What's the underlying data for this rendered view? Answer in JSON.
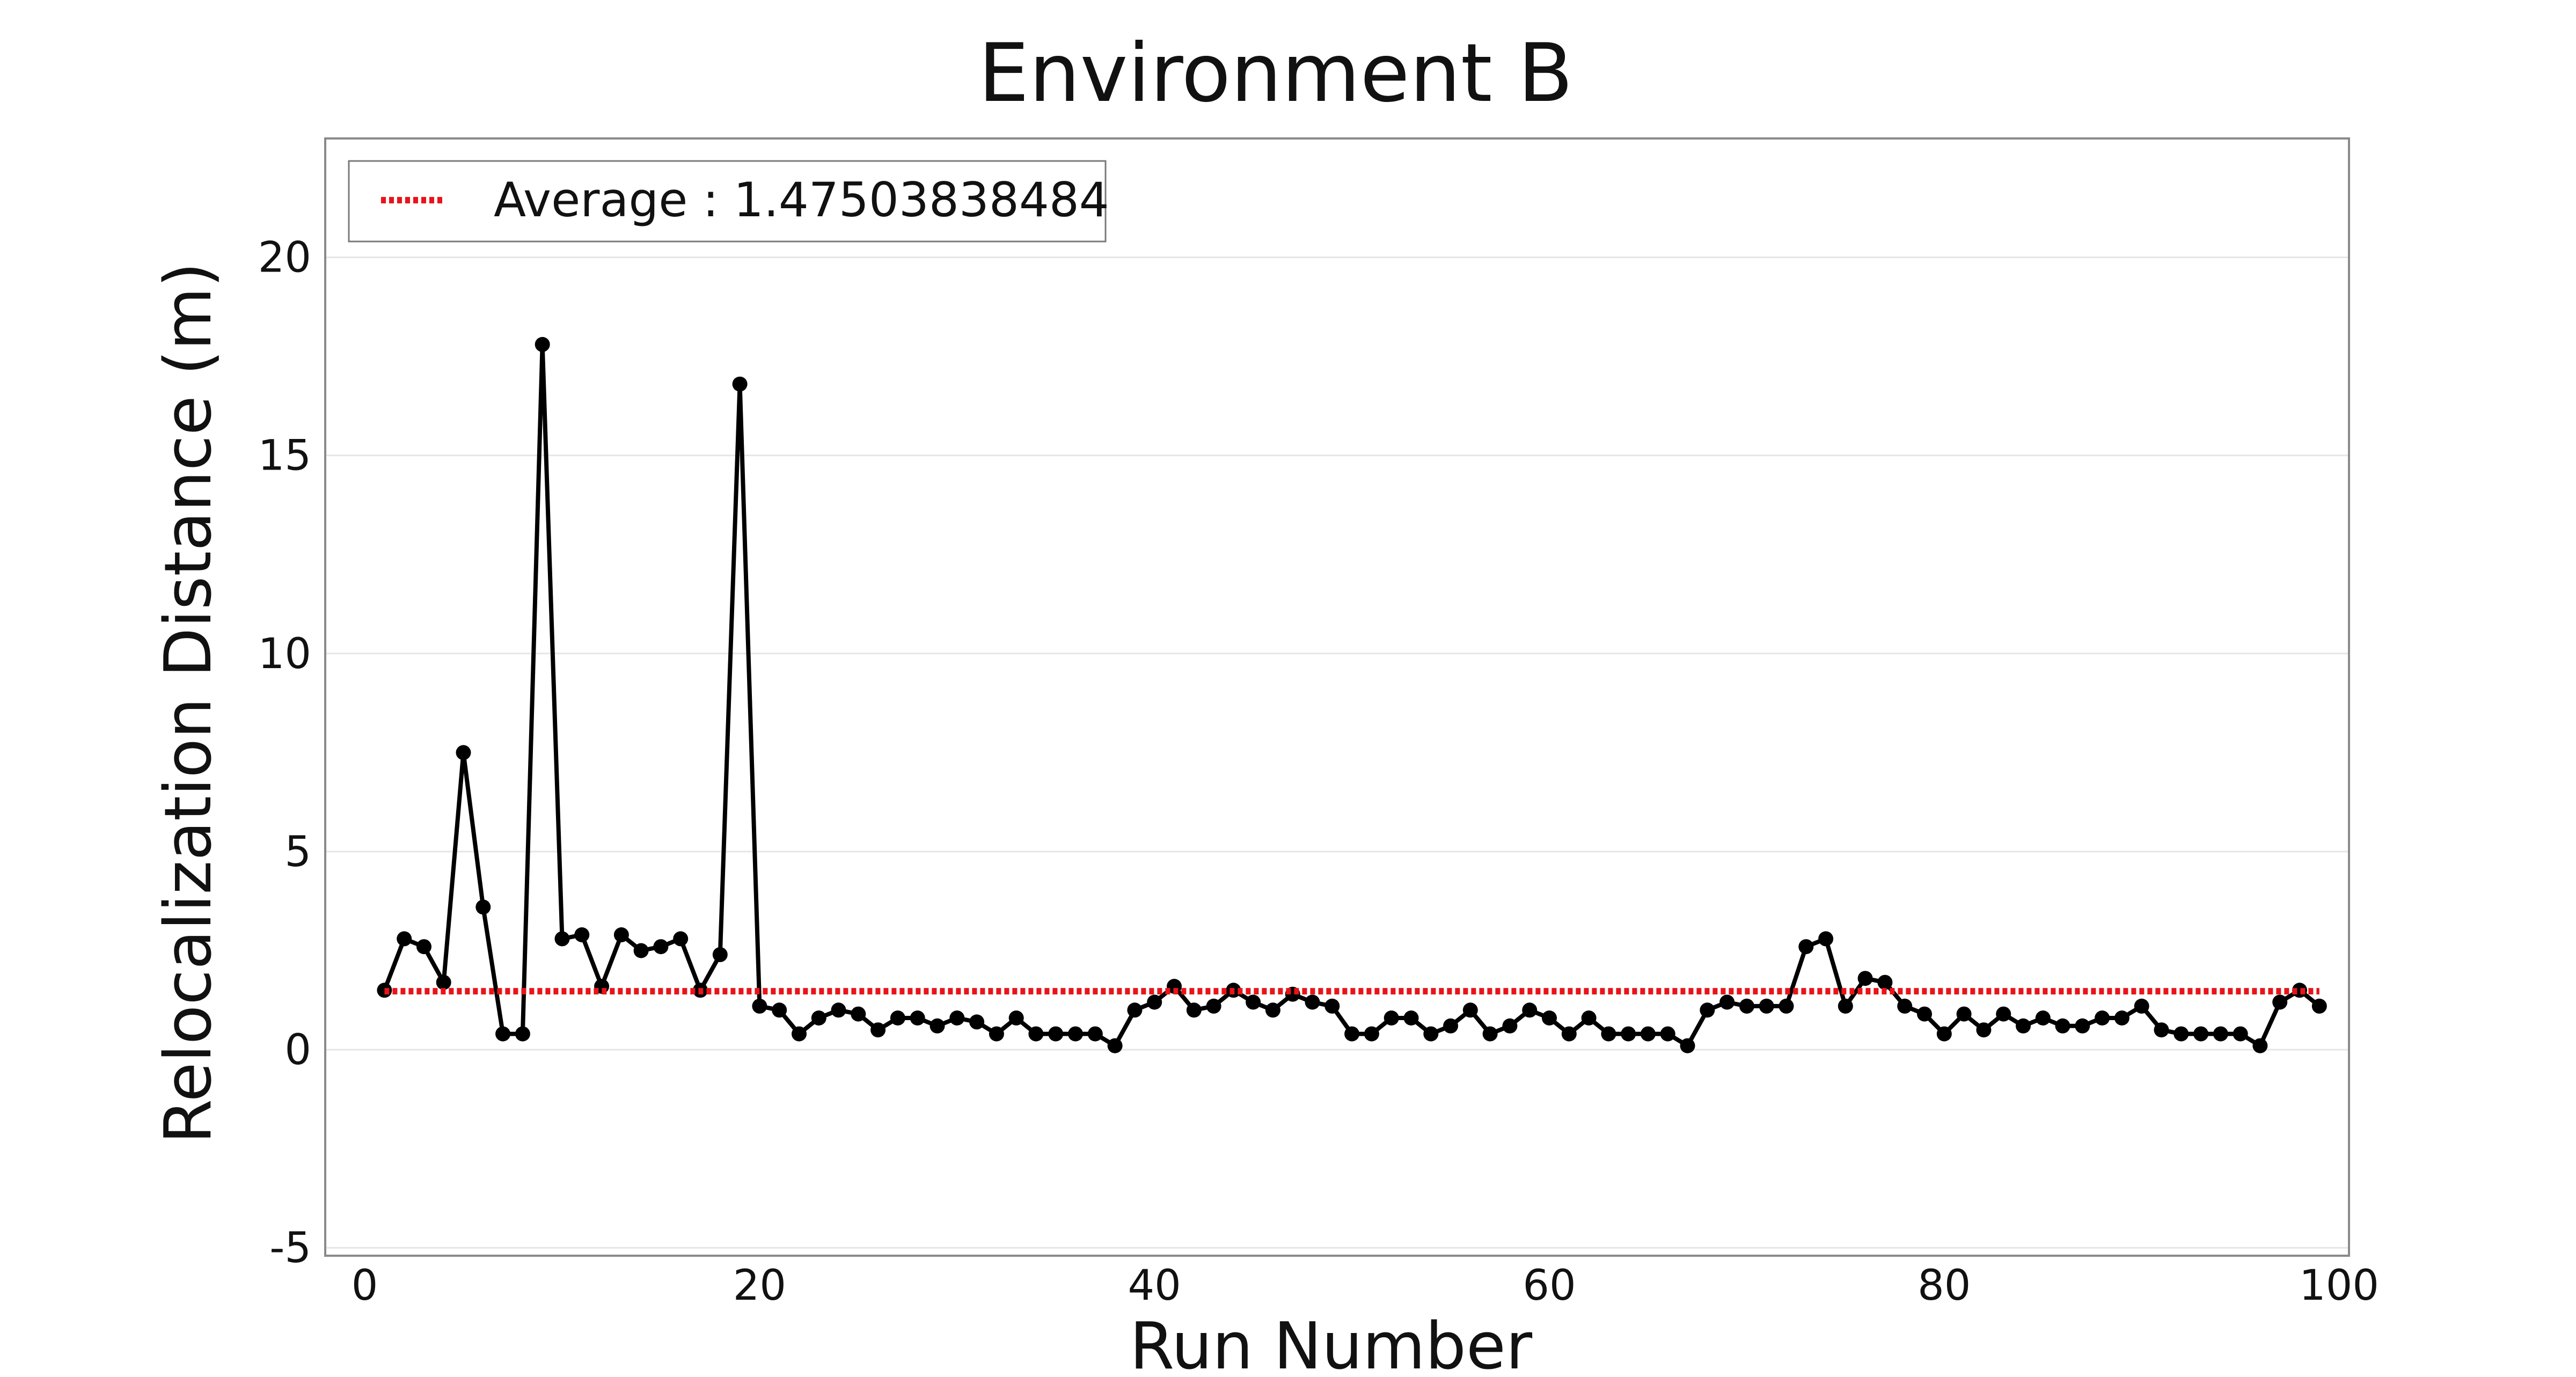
{
  "chart_data": {
    "type": "line",
    "title": "Environment B",
    "xlabel": "Run Number",
    "ylabel": "Relocalization Distance (m)",
    "xlim": [
      -2,
      100.5
    ],
    "ylim": [
      -5.2,
      23
    ],
    "x_ticks": [
      0,
      20,
      40,
      60,
      80,
      100
    ],
    "y_ticks": [
      -5,
      0,
      5,
      10,
      15,
      20
    ],
    "grid": "horizontal",
    "legend_position": "top-left",
    "colors": {
      "series": "#000000",
      "average": "#e8141a",
      "grid": "#e6e6e6",
      "frame": "#8a8a8a"
    },
    "series": [
      {
        "values": [
          {
            "x": 1,
            "y": 1.5
          },
          {
            "x": 2,
            "y": 2.8
          },
          {
            "x": 3,
            "y": 2.6
          },
          {
            "x": 4,
            "y": 1.7
          },
          {
            "x": 5,
            "y": 7.5
          },
          {
            "x": 6,
            "y": 3.6
          },
          {
            "x": 7,
            "y": 0.4
          },
          {
            "x": 8,
            "y": 0.4
          },
          {
            "x": 9,
            "y": 17.8
          },
          {
            "x": 10,
            "y": 2.8
          },
          {
            "x": 11,
            "y": 2.9
          },
          {
            "x": 12,
            "y": 1.6
          },
          {
            "x": 13,
            "y": 2.9
          },
          {
            "x": 14,
            "y": 2.5
          },
          {
            "x": 15,
            "y": 2.6
          },
          {
            "x": 16,
            "y": 2.8
          },
          {
            "x": 17,
            "y": 1.5
          },
          {
            "x": 18,
            "y": 2.4
          },
          {
            "x": 19,
            "y": 16.8
          },
          {
            "x": 20,
            "y": 1.1
          },
          {
            "x": 21,
            "y": 1.0
          },
          {
            "x": 22,
            "y": 0.4
          },
          {
            "x": 23,
            "y": 0.8
          },
          {
            "x": 24,
            "y": 1.0
          },
          {
            "x": 25,
            "y": 0.9
          },
          {
            "x": 26,
            "y": 0.5
          },
          {
            "x": 27,
            "y": 0.8
          },
          {
            "x": 28,
            "y": 0.8
          },
          {
            "x": 29,
            "y": 0.6
          },
          {
            "x": 30,
            "y": 0.8
          },
          {
            "x": 31,
            "y": 0.7
          },
          {
            "x": 32,
            "y": 0.4
          },
          {
            "x": 33,
            "y": 0.8
          },
          {
            "x": 34,
            "y": 0.4
          },
          {
            "x": 35,
            "y": 0.4
          },
          {
            "x": 36,
            "y": 0.4
          },
          {
            "x": 37,
            "y": 0.4
          },
          {
            "x": 38,
            "y": 0.1
          },
          {
            "x": 39,
            "y": 1.0
          },
          {
            "x": 40,
            "y": 1.2
          },
          {
            "x": 41,
            "y": 1.6
          },
          {
            "x": 42,
            "y": 1.0
          },
          {
            "x": 43,
            "y": 1.1
          },
          {
            "x": 44,
            "y": 1.5
          },
          {
            "x": 45,
            "y": 1.2
          },
          {
            "x": 46,
            "y": 1.0
          },
          {
            "x": 47,
            "y": 1.4
          },
          {
            "x": 48,
            "y": 1.2
          },
          {
            "x": 49,
            "y": 1.1
          },
          {
            "x": 50,
            "y": 0.4
          },
          {
            "x": 51,
            "y": 0.4
          },
          {
            "x": 52,
            "y": 0.8
          },
          {
            "x": 53,
            "y": 0.8
          },
          {
            "x": 54,
            "y": 0.4
          },
          {
            "x": 55,
            "y": 0.6
          },
          {
            "x": 56,
            "y": 1.0
          },
          {
            "x": 57,
            "y": 0.4
          },
          {
            "x": 58,
            "y": 0.6
          },
          {
            "x": 59,
            "y": 1.0
          },
          {
            "x": 60,
            "y": 0.8
          },
          {
            "x": 61,
            "y": 0.4
          },
          {
            "x": 62,
            "y": 0.8
          },
          {
            "x": 63,
            "y": 0.4
          },
          {
            "x": 64,
            "y": 0.4
          },
          {
            "x": 65,
            "y": 0.4
          },
          {
            "x": 66,
            "y": 0.4
          },
          {
            "x": 67,
            "y": 0.1
          },
          {
            "x": 68,
            "y": 1.0
          },
          {
            "x": 69,
            "y": 1.2
          },
          {
            "x": 70,
            "y": 1.1
          },
          {
            "x": 71,
            "y": 1.1
          },
          {
            "x": 72,
            "y": 1.1
          },
          {
            "x": 73,
            "y": 2.6
          },
          {
            "x": 74,
            "y": 2.8
          },
          {
            "x": 75,
            "y": 1.1
          },
          {
            "x": 76,
            "y": 1.8
          },
          {
            "x": 77,
            "y": 1.7
          },
          {
            "x": 78,
            "y": 1.1
          },
          {
            "x": 79,
            "y": 0.9
          },
          {
            "x": 80,
            "y": 0.4
          },
          {
            "x": 81,
            "y": 0.9
          },
          {
            "x": 82,
            "y": 0.5
          },
          {
            "x": 83,
            "y": 0.9
          },
          {
            "x": 84,
            "y": 0.6
          },
          {
            "x": 85,
            "y": 0.8
          },
          {
            "x": 86,
            "y": 0.6
          },
          {
            "x": 87,
            "y": 0.6
          },
          {
            "x": 88,
            "y": 0.8
          },
          {
            "x": 89,
            "y": 0.8
          },
          {
            "x": 90,
            "y": 1.1
          },
          {
            "x": 91,
            "y": 0.5
          },
          {
            "x": 92,
            "y": 0.4
          },
          {
            "x": 93,
            "y": 0.4
          },
          {
            "x": 94,
            "y": 0.4
          },
          {
            "x": 95,
            "y": 0.4
          },
          {
            "x": 96,
            "y": 0.1
          },
          {
            "x": 97,
            "y": 1.2
          },
          {
            "x": 98,
            "y": 1.5
          },
          {
            "x": 99,
            "y": 1.1
          }
        ]
      }
    ],
    "reference_lines": [
      {
        "name": "Average : 1.47503838484",
        "y": 1.47503838484,
        "x_range": [
          1,
          99
        ],
        "style": "dotted"
      }
    ]
  }
}
